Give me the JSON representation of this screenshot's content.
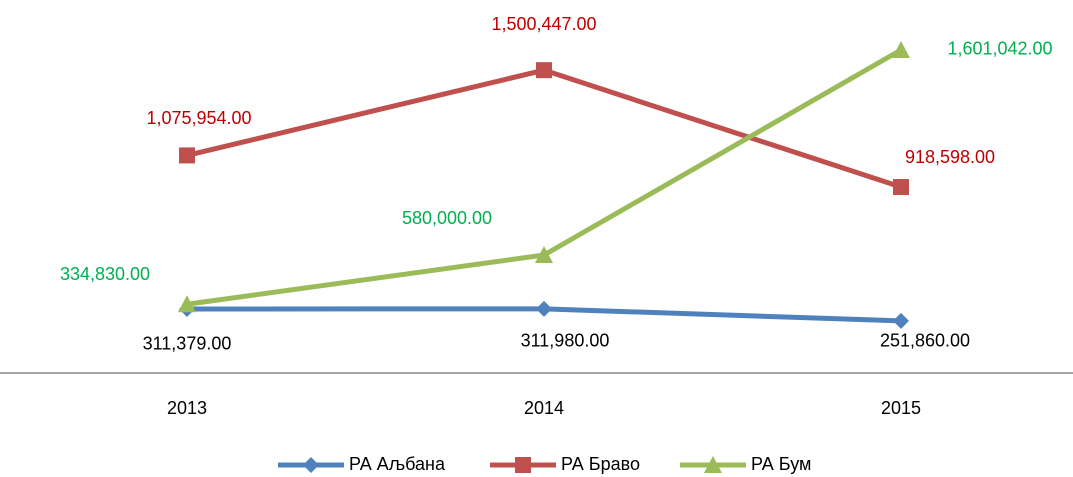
{
  "chart_data": {
    "type": "line",
    "categories": [
      "2013",
      "2014",
      "2015"
    ],
    "series": [
      {
        "name": "РА Аљбана",
        "color": "#4f81bd",
        "label_color": "#000000",
        "marker": "diamond",
        "values": [
          311379,
          311980,
          251860
        ],
        "value_labels": [
          "311,379.00",
          "311,980.00",
          "251,860.00"
        ]
      },
      {
        "name": "РА Браво",
        "color": "#c0504d",
        "label_color": "#c00000",
        "marker": "square",
        "values": [
          1075954,
          1500447,
          918598
        ],
        "value_labels": [
          "1,075,954.00",
          "1,500,447.00",
          "918,598.00"
        ]
      },
      {
        "name": "РА Бум",
        "color": "#9bbb59",
        "label_color": "#00b050",
        "marker": "triangle",
        "values": [
          334830,
          580000,
          1601042
        ],
        "value_labels": [
          "334,830.00",
          "580,000.00",
          "1,601,042.00"
        ]
      }
    ],
    "ylim": [
      0,
      1800000
    ],
    "grid": false,
    "legend": "bottom"
  }
}
